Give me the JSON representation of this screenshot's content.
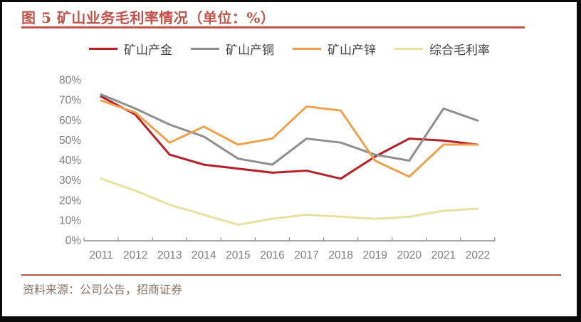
{
  "title": {
    "text": "图 5 矿山业务毛利率情况（单位：%）",
    "color": "#C0534A"
  },
  "rules": {
    "color": "#C0534A"
  },
  "source": {
    "text": "资料来源：公司公告，招商证券",
    "color": "#86705F"
  },
  "legend_label_color": "#3D3D3D",
  "chart_data": {
    "type": "line",
    "title": "图 5 矿山业务毛利率情况（单位：%）",
    "xlabel": "",
    "ylabel": "",
    "categories": [
      "2011",
      "2012",
      "2013",
      "2014",
      "2015",
      "2016",
      "2017",
      "2018",
      "2019",
      "2020",
      "2021",
      "2022"
    ],
    "series": [
      {
        "name": "矿山产金",
        "color": "#B42025",
        "values": [
          72,
          63,
          43,
          38,
          36,
          34,
          35,
          31,
          42,
          51,
          50,
          48
        ]
      },
      {
        "name": "矿山产铜",
        "color": "#8E8E8E",
        "values": [
          73,
          66,
          58,
          52,
          41,
          38,
          51,
          49,
          43,
          40,
          66,
          60
        ]
      },
      {
        "name": "矿山产锌",
        "color": "#EFA04C",
        "values": [
          70,
          64,
          49,
          57,
          48,
          51,
          67,
          65,
          40,
          32,
          48,
          48
        ]
      },
      {
        "name": "综合毛利率",
        "color": "#E7E09F",
        "values": [
          31,
          25,
          18,
          13,
          8,
          11,
          13,
          12,
          11,
          12,
          15,
          16
        ]
      }
    ],
    "ylim": [
      0,
      80
    ],
    "y_ticks": [
      "0%",
      "10%",
      "20%",
      "30%",
      "40%",
      "50%",
      "60%",
      "70%",
      "80%"
    ],
    "grid": false,
    "legend_position": "top",
    "axis_color": "#8C8C8C",
    "tick_label_color": "#7E7E7E"
  }
}
